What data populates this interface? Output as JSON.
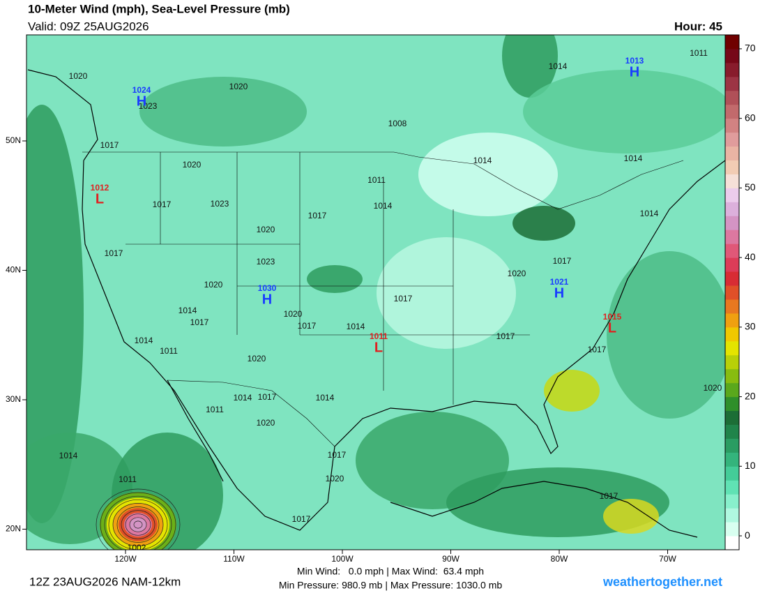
{
  "header": {
    "title": "10-Meter Wind (mph), Sea-Level Pressure (mb)",
    "valid": "Valid: 09Z 25AUG2026",
    "hour": "Hour: 45"
  },
  "map": {
    "lat_ticks": [
      {
        "value": 50,
        "label": "50N"
      },
      {
        "value": 40,
        "label": "40N"
      },
      {
        "value": 30,
        "label": "30N"
      },
      {
        "value": 20,
        "label": "20N"
      }
    ],
    "lon_ticks": [
      {
        "value": -120,
        "label": "120W"
      },
      {
        "value": -110,
        "label": "110W"
      },
      {
        "value": -100,
        "label": "100W"
      },
      {
        "value": -90,
        "label": "90W"
      },
      {
        "value": -80,
        "label": "80W"
      },
      {
        "value": -70,
        "label": "70W"
      }
    ],
    "isobar_labels": [
      "1020",
      "1020",
      "1023",
      "1008",
      "1017",
      "1020",
      "1011",
      "1017",
      "1023",
      "1014",
      "1017",
      "1020",
      "1017",
      "1023",
      "1020",
      "1020",
      "1017",
      "1017",
      "1014",
      "1017",
      "1020",
      "1017",
      "1014",
      "1014",
      "1011",
      "1017",
      "1017",
      "1020",
      "1011",
      "1014",
      "1017",
      "1014",
      "1020",
      "1017",
      "1020",
      "1014",
      "1011",
      "1017",
      "1017",
      "1020",
      "1011",
      "1014",
      "1014",
      "1014",
      "1014",
      "1002"
    ],
    "centers": [
      {
        "letter": "H",
        "pressure": "1024"
      },
      {
        "letter": "H",
        "pressure": "1013"
      },
      {
        "letter": "L",
        "pressure": "1012"
      },
      {
        "letter": "H",
        "pressure": "1030"
      },
      {
        "letter": "L",
        "pressure": "1011"
      },
      {
        "letter": "H",
        "pressure": "1021"
      },
      {
        "letter": "L",
        "pressure": "1015"
      }
    ]
  },
  "colorbar": {
    "lim": [
      -2,
      72
    ],
    "ticks": [
      0,
      10,
      20,
      30,
      40,
      50,
      60,
      70
    ],
    "colors": [
      "#ffffff",
      "#d8fff0",
      "#b0f8e0",
      "#88f0cc",
      "#60e2b4",
      "#44cc98",
      "#34b47c",
      "#2a9c62",
      "#20844a",
      "#1c6e36",
      "#2f8f2a",
      "#5aa81c",
      "#88bc10",
      "#b8d008",
      "#e4e400",
      "#f0c800",
      "#f0a010",
      "#e87820",
      "#e05028",
      "#d82c34",
      "#dc3c58",
      "#e05878",
      "#dc78a0",
      "#d494c4",
      "#dcb0dc",
      "#ecccec",
      "#f6e0d8",
      "#f2ccb4",
      "#eab4a4",
      "#e09c9c",
      "#d28282",
      "#c26a6c",
      "#b05058",
      "#9c3444",
      "#881c2c",
      "#760818",
      "#700000"
    ]
  },
  "footer": {
    "run": "12Z 23AUG2026 NAM-12km",
    "wind": "Min Wind:   0.0 mph | Max Wind:  63.4 mph",
    "pressure": "Min Pressure: 980.9 mb | Max Pressure: 1030.0 mb",
    "site": "weathertogether.net"
  }
}
